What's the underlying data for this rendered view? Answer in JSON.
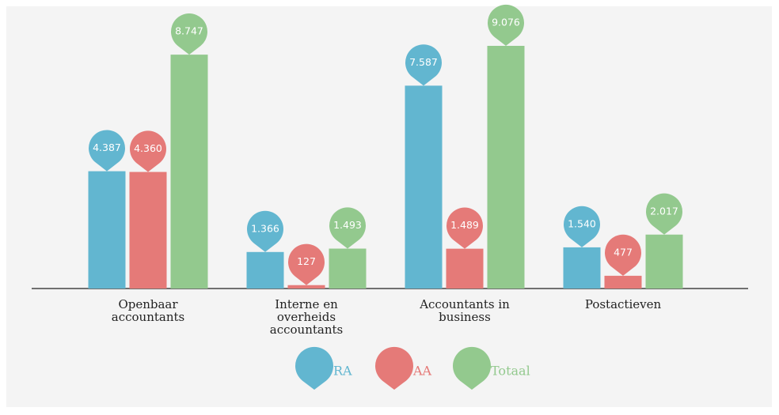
{
  "chart_data": {
    "type": "bar",
    "categories": [
      "Openbaar accountants",
      "Interne en overheids accountants",
      "Accountants in business",
      "Postactieven"
    ],
    "series": [
      {
        "name": "RA",
        "color": "#62b6d0",
        "values": [
          4387,
          1366,
          7587,
          1540
        ],
        "value_labels": [
          "4.387",
          "1.366",
          "7.587",
          "1.540"
        ]
      },
      {
        "name": "AA",
        "color": "#e57a78",
        "values": [
          4360,
          127,
          1489,
          477
        ],
        "value_labels": [
          "4.360",
          "127",
          "1.489",
          "477"
        ]
      },
      {
        "name": "Totaal",
        "color": "#93c98e",
        "values": [
          8747,
          1493,
          9076,
          2017
        ],
        "value_labels": [
          "8.747",
          "1.493",
          "9.076",
          "2.017"
        ]
      }
    ]
  }
}
